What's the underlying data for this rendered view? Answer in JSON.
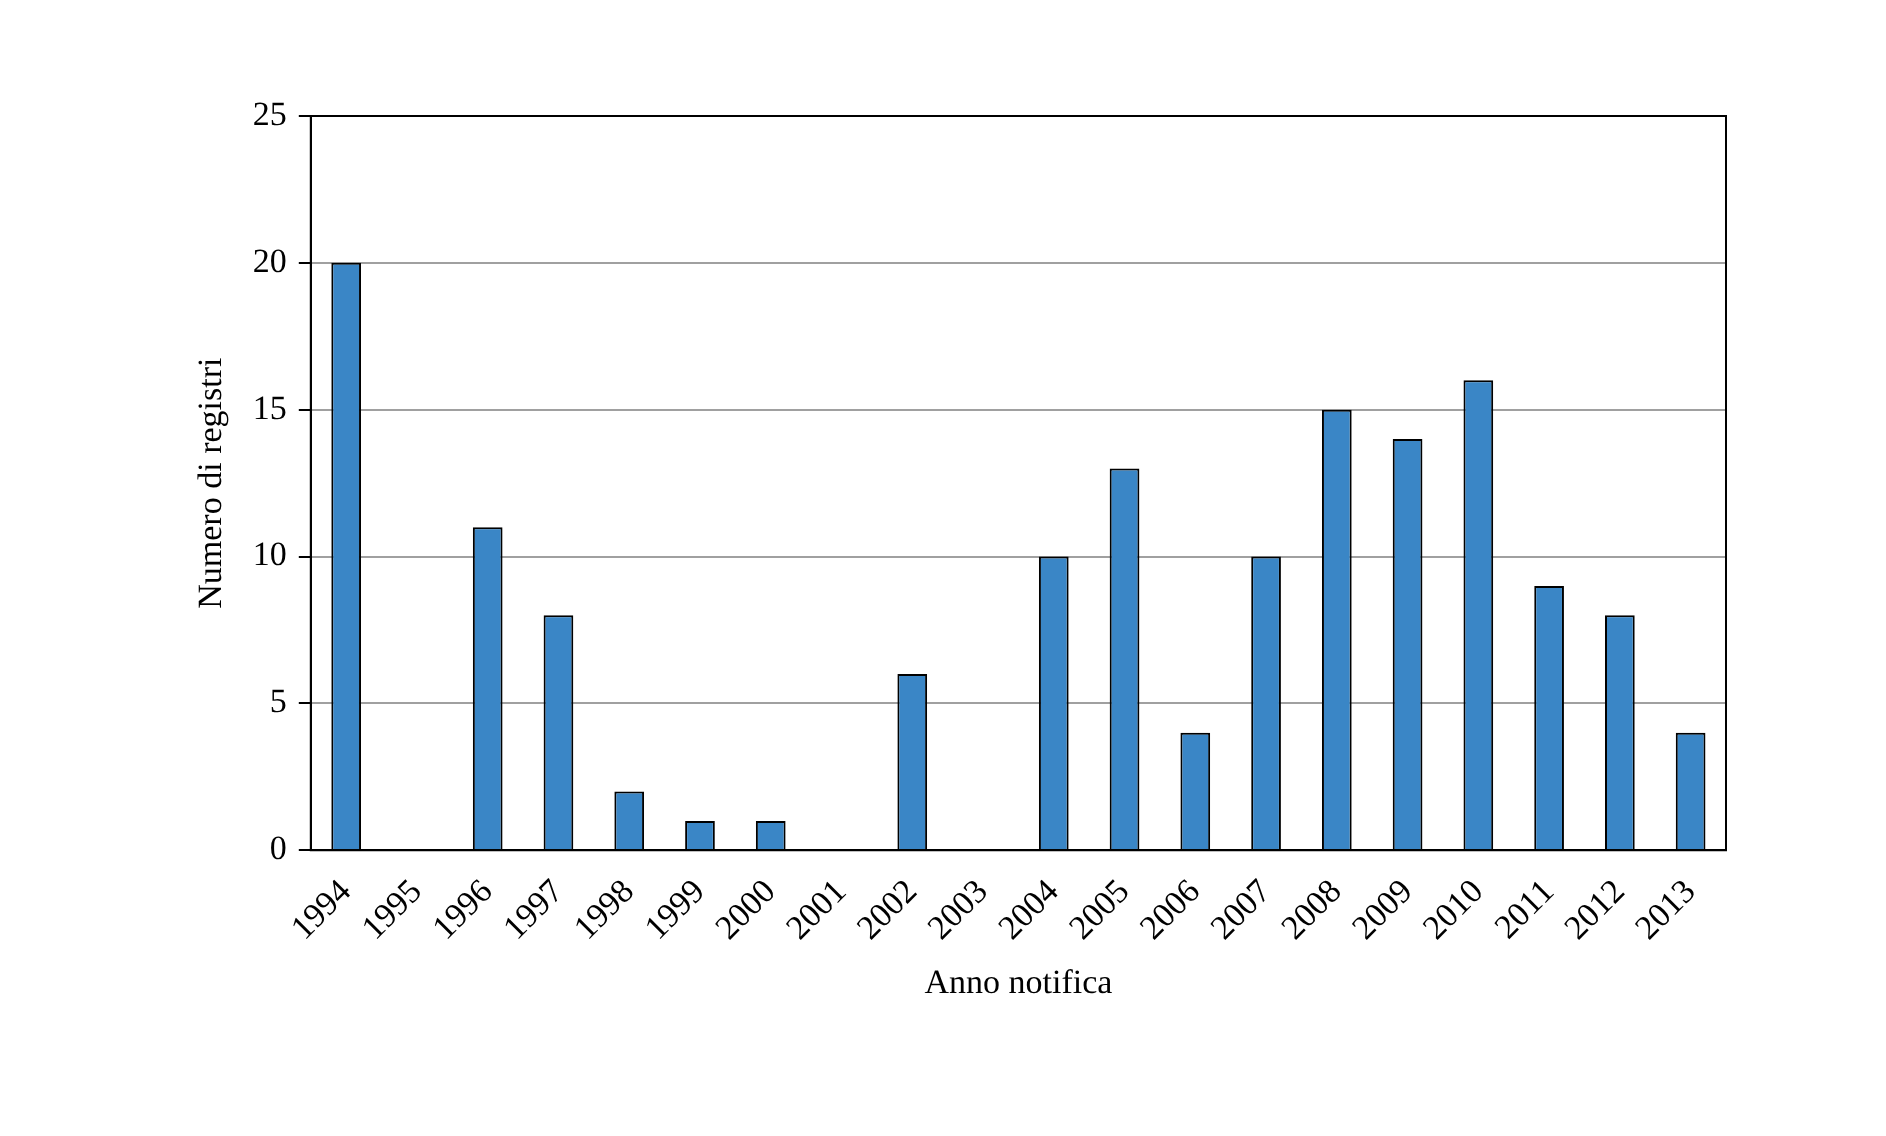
{
  "chart_data": {
    "type": "bar",
    "xlabel": "Anno notifica",
    "ylabel": "Numero di registri",
    "categories": [
      "1994",
      "1995",
      "1996",
      "1997",
      "1998",
      "1999",
      "2000",
      "2001",
      "2002",
      "2003",
      "2004",
      "2005",
      "2006",
      "2007",
      "2008",
      "2009",
      "2010",
      "2011",
      "2012",
      "2013"
    ],
    "values": [
      20,
      0,
      11,
      8,
      2,
      1,
      1,
      0,
      6,
      0,
      10,
      13,
      4,
      10,
      15,
      14,
      16,
      9,
      8,
      4
    ],
    "color": "#3a86c6",
    "ylim": [
      0,
      25
    ],
    "yticks": [
      0,
      5,
      10,
      15,
      20,
      25
    ],
    "grid": "y",
    "legend": false
  }
}
